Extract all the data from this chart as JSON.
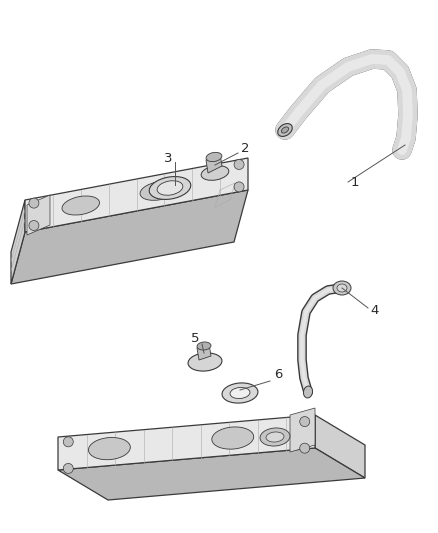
{
  "bg_color": "#ffffff",
  "line_color": "#3a3a3a",
  "fill_light": "#e8e8e8",
  "fill_mid": "#d0d0d0",
  "fill_dark": "#b8b8b8",
  "fill_darker": "#a0a0a0",
  "label_color": "#2a2a2a",
  "label_fontsize": 9.5,
  "figsize": [
    4.38,
    5.33
  ],
  "dpi": 100
}
